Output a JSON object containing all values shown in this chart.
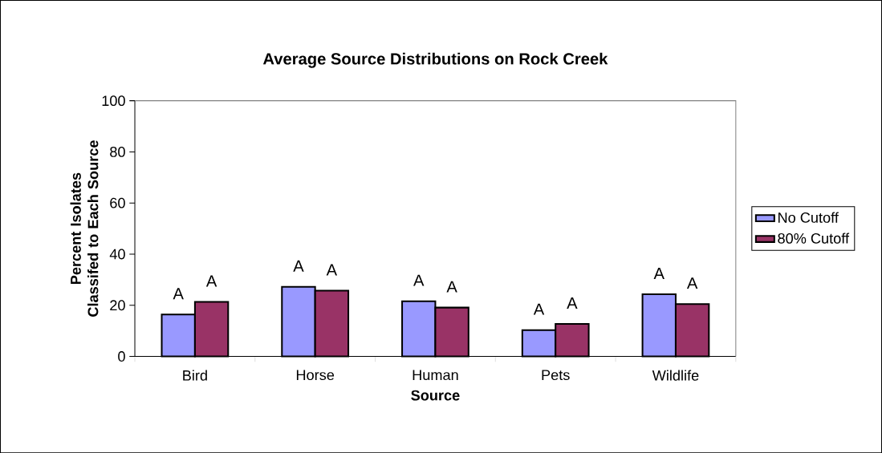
{
  "chart_data": {
    "type": "bar",
    "title": "Average Source Distributions on Rock Creek",
    "xlabel": "Source",
    "ylabel": "Percent Isolates Classifed to Each Source",
    "categories": [
      "Bird",
      "Horse",
      "Human",
      "Pets",
      "Wildlife"
    ],
    "series": [
      {
        "name": "No Cutoff",
        "color": "#9999ff",
        "values": [
          16.4,
          27.2,
          21.6,
          10.3,
          24.3
        ]
      },
      {
        "name": "80% Cutoff",
        "color": "#993366",
        "values": [
          21.3,
          25.7,
          19.1,
          12.7,
          20.5
        ]
      }
    ],
    "ylim": [
      0,
      100
    ],
    "yticks": [
      0,
      20,
      40,
      60,
      80,
      100
    ],
    "grid": false,
    "legend": "right",
    "annotations": [
      "A",
      "A",
      "A",
      "A",
      "A",
      "A",
      "A",
      "A",
      "A",
      "A"
    ]
  }
}
